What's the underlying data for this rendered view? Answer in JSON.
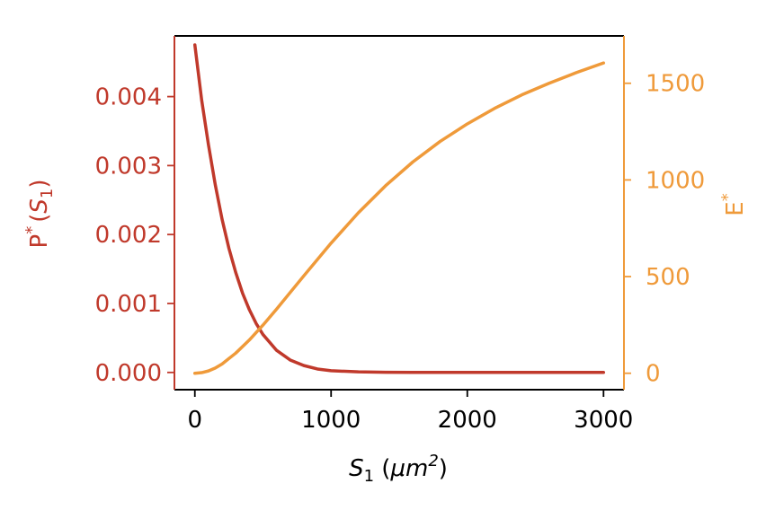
{
  "chart_data": {
    "type": "line",
    "x_axis": {
      "label_base": "S",
      "label_sub": "1",
      "label_units_open": " (",
      "label_units_var": "μm",
      "label_units_sup": "2",
      "label_units_close": ")",
      "range": [
        -150,
        3150
      ],
      "ticks": [
        0,
        1000,
        2000,
        3000
      ],
      "tick_labels": [
        "0",
        "1000",
        "2000",
        "3000"
      ]
    },
    "left_axis": {
      "label_base": "P",
      "label_sup": "*",
      "label_open": "(",
      "label_var": "S",
      "label_sub": "1",
      "label_close": ")",
      "range": [
        -0.00025,
        0.00488
      ],
      "ticks": [
        0,
        0.001,
        0.002,
        0.003,
        0.004
      ],
      "tick_labels": [
        "0.000",
        "0.001",
        "0.002",
        "0.003",
        "0.004"
      ],
      "color": "#c0392b"
    },
    "right_axis": {
      "label_base": "E",
      "label_sup": "*",
      "range": [
        -85,
        1745
      ],
      "ticks": [
        0,
        500,
        1000,
        1500
      ],
      "tick_labels": [
        "0",
        "500",
        "1000",
        "1500"
      ],
      "color": "#ef9a3a"
    },
    "series": [
      {
        "axis": "left",
        "color": "#c0392b",
        "x": [
          0,
          50,
          100,
          150,
          200,
          250,
          300,
          350,
          400,
          450,
          500,
          600,
          700,
          800,
          900,
          1000,
          1200,
          1400,
          1600,
          2000,
          2500,
          3000
        ],
        "y": [
          0.00475,
          0.00395,
          0.0033,
          0.00272,
          0.00222,
          0.0018,
          0.00145,
          0.00115,
          0.00091,
          0.00071,
          0.00055,
          0.00032,
          0.00018,
          0.0001,
          5e-05,
          2.5e-05,
          8e-06,
          2e-06,
          0.0,
          0.0,
          0.0,
          0.0
        ]
      },
      {
        "axis": "right",
        "color": "#ef9a3a",
        "x": [
          0,
          50,
          100,
          150,
          200,
          300,
          400,
          500,
          600,
          700,
          800,
          1000,
          1200,
          1400,
          1600,
          1800,
          2000,
          2200,
          2400,
          2600,
          2800,
          3000
        ],
        "y": [
          0,
          3,
          12,
          27,
          48,
          104,
          172,
          249,
          332,
          418,
          504,
          673,
          830,
          970,
          1093,
          1199,
          1290,
          1370,
          1440,
          1500,
          1555,
          1605
        ]
      }
    ],
    "grid": false
  }
}
